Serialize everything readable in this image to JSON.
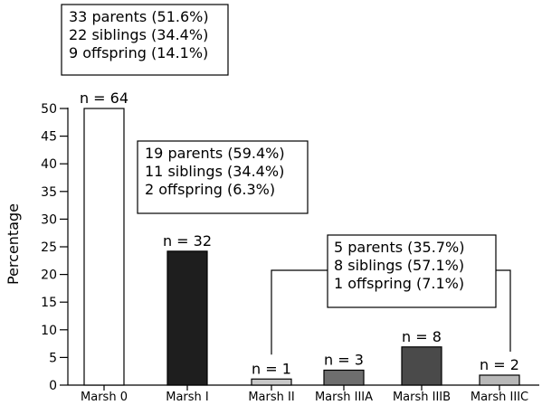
{
  "chart_data": {
    "type": "bar",
    "title": "",
    "xlabel": "",
    "ylabel": "Percentage",
    "ylim": [
      0,
      50
    ],
    "yticks": [
      0,
      5,
      10,
      15,
      20,
      25,
      30,
      35,
      40,
      45,
      50
    ],
    "categories": [
      "Marsh 0",
      "Marsh I",
      "Marsh II",
      "Marsh IIIA",
      "Marsh IIIB",
      "Marsh IIIC"
    ],
    "values": [
      50.0,
      24.2,
      1.1,
      2.7,
      6.9,
      1.8
    ],
    "n_labels": [
      "n = 64",
      "n = 32",
      "n = 1",
      "n = 3",
      "n = 8",
      "n = 2"
    ],
    "bar_colors": [
      "#ffffff",
      "#1e1e1e",
      "#c8c8c8",
      "#6e6e6e",
      "#4a4a4a",
      "#b8b8b8"
    ],
    "annotations": [
      {
        "lines": [
          "33 parents (51.6%)",
          "22 siblings (34.4%)",
          "9 offspring (14.1%)"
        ],
        "refers_to": [
          "Marsh 0"
        ]
      },
      {
        "lines": [
          "19 parents (59.4%)",
          "11 siblings (34.4%)",
          "2 offspring (6.3%)"
        ],
        "refers_to": [
          "Marsh I"
        ]
      },
      {
        "lines": [
          "5 parents (35.7%)",
          "8 siblings (57.1%)",
          "1 offspring (7.1%)"
        ],
        "refers_to": [
          "Marsh II",
          "Marsh IIIC"
        ]
      }
    ],
    "grid": false,
    "legend": "none"
  }
}
